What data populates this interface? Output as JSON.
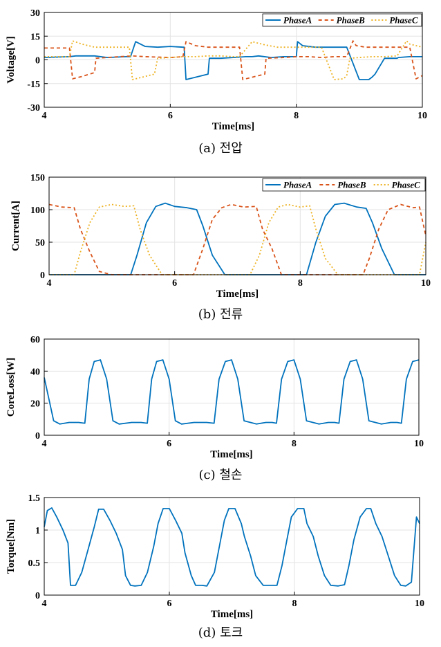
{
  "chart_data": [
    {
      "type": "line",
      "caption": "(a) 전압",
      "xlabel": "Time[ms]",
      "ylabel": "Voltage[V]",
      "xlim": [
        4,
        10
      ],
      "ylim": [
        -30,
        30
      ],
      "xticks": [
        4,
        6,
        8,
        10
      ],
      "yticks": [
        -30,
        -15,
        0,
        15,
        30
      ],
      "legend": "top-right",
      "grid": true,
      "series": [
        {
          "name": "PhaseA",
          "color": "#0072BD",
          "dash": "none",
          "x": [
            4.0,
            4.4,
            4.5,
            4.8,
            5.0,
            5.3,
            5.37,
            5.45,
            5.6,
            5.8,
            6.0,
            6.2,
            6.22,
            6.25,
            6.4,
            6.6,
            6.62,
            6.8,
            7.0,
            7.2,
            7.3,
            7.4,
            7.6,
            7.8,
            8.0,
            8.02,
            8.1,
            8.3,
            8.5,
            8.6,
            8.8,
            9.0,
            9.15,
            9.2,
            9.25,
            9.4,
            9.6,
            9.62,
            9.8,
            10.0
          ],
          "y": [
            1.5,
            2,
            2.5,
            2.5,
            1.5,
            2,
            2,
            11.5,
            8.5,
            8,
            8.5,
            8,
            8,
            -12.5,
            -11,
            -9,
            1,
            1,
            1.5,
            2,
            2,
            2.5,
            1.5,
            2,
            2,
            11.5,
            9,
            8,
            8,
            8,
            8,
            -12.5,
            -12.5,
            -11,
            -9,
            1,
            1,
            1.5,
            2,
            2
          ]
        },
        {
          "name": "PhaseB",
          "color": "#D95319",
          "dash": "5,4",
          "x": [
            4.0,
            4.2,
            4.4,
            4.45,
            4.6,
            4.8,
            4.82,
            5.0,
            5.2,
            5.4,
            5.6,
            6.0,
            6.2,
            6.25,
            6.4,
            6.6,
            6.8,
            7.0,
            7.1,
            7.15,
            7.3,
            7.5,
            7.52,
            7.8,
            8.0,
            8.2,
            8.4,
            8.6,
            8.8,
            8.9,
            8.95,
            9.1,
            9.3,
            9.5,
            9.8,
            9.9,
            9.95,
            10.0
          ],
          "y": [
            7.5,
            7.5,
            7.5,
            -12,
            -10.5,
            -8,
            1,
            1.5,
            2,
            2.5,
            2,
            1.5,
            2,
            11.5,
            9,
            8,
            8,
            8,
            8,
            -12.5,
            -11,
            -9,
            1,
            1.5,
            2,
            2,
            1.5,
            2,
            2,
            12,
            9,
            8,
            8,
            8,
            8,
            -12,
            -11,
            -10
          ]
        },
        {
          "name": "PhaseC",
          "color": "#EDB120",
          "dash": "2,3",
          "x": [
            4.0,
            4.2,
            4.4,
            4.45,
            4.6,
            4.8,
            5.0,
            5.2,
            5.35,
            5.4,
            5.6,
            5.75,
            5.8,
            6.0,
            6.2,
            6.4,
            6.6,
            6.8,
            7.0,
            7.1,
            7.3,
            7.5,
            7.7,
            7.8,
            7.82,
            8.0,
            8.1,
            8.2,
            8.4,
            8.6,
            8.75,
            8.8,
            8.85,
            9.0,
            9.2,
            9.4,
            9.6,
            9.75,
            9.8,
            10.0
          ],
          "y": [
            2,
            2,
            2,
            12,
            10,
            8,
            8,
            8,
            8,
            -12.5,
            -10.5,
            -9,
            1,
            1.5,
            2,
            2,
            2.5,
            2.5,
            2,
            2,
            11.5,
            9.5,
            8,
            8,
            8,
            8,
            8,
            8,
            8,
            -12.5,
            -12,
            -10,
            1,
            1.5,
            2,
            2,
            2.5,
            12,
            10,
            8
          ]
        }
      ]
    },
    {
      "type": "line",
      "caption": "(b) 전류",
      "xlabel": "Time[ms]",
      "ylabel": "Current[A]",
      "xlim": [
        4,
        10
      ],
      "ylim": [
        0,
        150
      ],
      "xticks": [
        4,
        6,
        8,
        10
      ],
      "yticks": [
        0,
        50,
        100,
        150
      ],
      "legend": "top-right",
      "grid": true,
      "series": [
        {
          "name": "PhaseA",
          "color": "#0072BD",
          "dash": "none",
          "x": [
            4.0,
            5.3,
            5.4,
            5.55,
            5.7,
            5.85,
            6.0,
            6.2,
            6.35,
            6.45,
            6.6,
            6.8,
            7.0,
            8.0,
            8.1,
            8.25,
            8.4,
            8.55,
            8.7,
            8.9,
            9.05,
            9.15,
            9.3,
            9.5,
            10.0
          ],
          "y": [
            0,
            0,
            30,
            80,
            105,
            110,
            105,
            103,
            100,
            75,
            30,
            0,
            0,
            0,
            0,
            50,
            90,
            108,
            110,
            104,
            102,
            80,
            40,
            0,
            0
          ],
          "xshift": 0
        },
        {
          "name": "PhaseB",
          "color": "#D95319",
          "dash": "5,4",
          "x": [
            4.0,
            4.2,
            4.4,
            4.5,
            4.65,
            4.8,
            5.0,
            6.3,
            6.45,
            6.6,
            6.75,
            6.9,
            7.1,
            7.3,
            7.4,
            7.55,
            7.7,
            7.8,
            9.0,
            9.1,
            9.25,
            9.4,
            9.6,
            9.8,
            9.9,
            10.0
          ],
          "y": [
            108,
            104,
            103,
            70,
            35,
            5,
            0,
            0,
            40,
            85,
            103,
            108,
            104,
            105,
            70,
            40,
            0,
            0,
            0,
            25,
            70,
            100,
            108,
            103,
            104,
            60
          ]
        },
        {
          "name": "PhaseC",
          "color": "#EDB120",
          "dash": "2,3",
          "x": [
            4.0,
            4.4,
            4.5,
            4.65,
            4.8,
            5.0,
            5.2,
            5.35,
            5.45,
            5.6,
            5.8,
            6.0,
            7.2,
            7.35,
            7.5,
            7.65,
            7.8,
            8.0,
            8.15,
            8.25,
            8.4,
            8.6,
            8.8,
            9.9,
            10.0
          ],
          "y": [
            0,
            0,
            35,
            80,
            104,
            108,
            105,
            106,
            70,
            30,
            0,
            0,
            0,
            30,
            80,
            104,
            108,
            104,
            106,
            70,
            25,
            0,
            0,
            0,
            50
          ]
        }
      ]
    },
    {
      "type": "line",
      "caption": "(c) 철손",
      "xlabel": "Time[ms]",
      "ylabel": "CoreLoss[W]",
      "xlim": [
        4,
        10
      ],
      "ylim": [
        0,
        60
      ],
      "xticks": [
        4,
        6,
        8,
        10
      ],
      "yticks": [
        0,
        20,
        40,
        60
      ],
      "grid": true,
      "series": [
        {
          "name": "",
          "color": "#0072BD",
          "dash": "none",
          "x": [
            4.0,
            4.15,
            4.25,
            4.4,
            4.55,
            4.65,
            4.72,
            4.8,
            4.9,
            5.0,
            5.1,
            5.2,
            5.4,
            5.55,
            5.65,
            5.72,
            5.8,
            5.9,
            6.0,
            6.1,
            6.2,
            6.4,
            6.6,
            6.72,
            6.8,
            6.9,
            7.0,
            7.1,
            7.2,
            7.4,
            7.55,
            7.65,
            7.72,
            7.8,
            7.9,
            8.0,
            8.1,
            8.2,
            8.4,
            8.55,
            8.65,
            8.72,
            8.8,
            8.9,
            9.0,
            9.1,
            9.2,
            9.4,
            9.55,
            9.65,
            9.72,
            9.8,
            9.9,
            10.0
          ],
          "y": [
            36,
            9,
            7,
            8,
            8,
            7.5,
            35,
            46,
            47,
            35,
            9,
            7,
            8,
            8,
            7.5,
            35,
            46,
            47,
            35,
            9,
            7,
            8,
            8,
            7.5,
            35,
            46,
            47,
            35,
            9,
            7,
            8,
            8,
            7.5,
            35,
            46,
            47,
            35,
            9,
            7,
            8,
            8,
            7.5,
            35,
            46,
            47,
            35,
            9,
            7,
            8,
            8,
            7.5,
            35,
            46,
            47
          ]
        }
      ]
    },
    {
      "type": "line",
      "caption": "(d) 토크",
      "xlabel": "Time[ms]",
      "ylabel": "Torque[Nm]",
      "xlim": [
        4,
        10
      ],
      "ylim": [
        0,
        1.5
      ],
      "xticks": [
        4,
        6,
        8,
        10
      ],
      "yticks": [
        0,
        0.5,
        1,
        1.5
      ],
      "grid": true,
      "series": [
        {
          "name": "",
          "color": "#0072BD",
          "dash": "none",
          "x": [
            4.0,
            4.05,
            4.12,
            4.2,
            4.3,
            4.38,
            4.42,
            4.5,
            4.6,
            4.7,
            4.8,
            4.87,
            4.95,
            5.05,
            5.15,
            5.25,
            5.3,
            5.38,
            5.45,
            5.55,
            5.65,
            5.75,
            5.82,
            5.9,
            6.0,
            6.1,
            6.2,
            6.25,
            6.35,
            6.42,
            6.52,
            6.6,
            6.72,
            6.8,
            6.88,
            6.95,
            7.05,
            7.15,
            7.2,
            7.3,
            7.38,
            7.5,
            7.6,
            7.72,
            7.8,
            7.88,
            7.95,
            8.05,
            8.15,
            8.2,
            8.3,
            8.38,
            8.48,
            8.58,
            8.7,
            8.8,
            8.87,
            8.95,
            9.05,
            9.15,
            9.22,
            9.3,
            9.4,
            9.5,
            9.6,
            9.7,
            9.78,
            9.87,
            9.95,
            10.0
          ],
          "y": [
            1.05,
            1.3,
            1.34,
            1.2,
            1.0,
            0.8,
            0.15,
            0.15,
            0.35,
            0.7,
            1.05,
            1.32,
            1.32,
            1.15,
            0.95,
            0.7,
            0.3,
            0.15,
            0.14,
            0.15,
            0.35,
            0.75,
            1.1,
            1.33,
            1.33,
            1.15,
            0.95,
            0.65,
            0.3,
            0.15,
            0.15,
            0.14,
            0.35,
            0.75,
            1.15,
            1.33,
            1.33,
            1.1,
            0.9,
            0.6,
            0.3,
            0.15,
            0.15,
            0.15,
            0.45,
            0.85,
            1.2,
            1.33,
            1.33,
            1.1,
            0.9,
            0.6,
            0.3,
            0.15,
            0.14,
            0.16,
            0.45,
            0.85,
            1.2,
            1.33,
            1.33,
            1.1,
            0.9,
            0.6,
            0.3,
            0.15,
            0.14,
            0.2,
            1.2,
            1.1
          ]
        }
      ]
    }
  ]
}
